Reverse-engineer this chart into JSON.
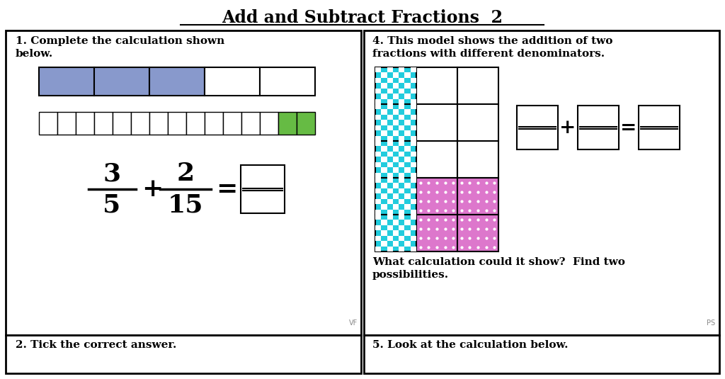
{
  "title": "Add and Subtract Fractions  2",
  "bg_color": "#ffffff",
  "border_color": "#000000",
  "q1_text1": "1. Complete the calculation shown",
  "q1_text2": "below.",
  "q4_text1": "4. This model shows the addition of two",
  "q4_text2": "fractions with different denominators.",
  "q4_sub_text1": "What calculation could it show?  Find two",
  "q4_sub_text2": "possibilities.",
  "q2_text": "2. Tick the correct answer.",
  "q5_text": "5. Look at the calculation below.",
  "blue_color": "#8899cc",
  "green_color": "#66bb44",
  "cyan_color": "#22ccdd",
  "cyan_dark": "#00aacc",
  "pink_color": "#dd77cc",
  "vf_label": "VF",
  "ps_label": "PS",
  "fraction1_num": "3",
  "fraction1_den": "5",
  "fraction2_num": "2",
  "fraction2_den": "15"
}
